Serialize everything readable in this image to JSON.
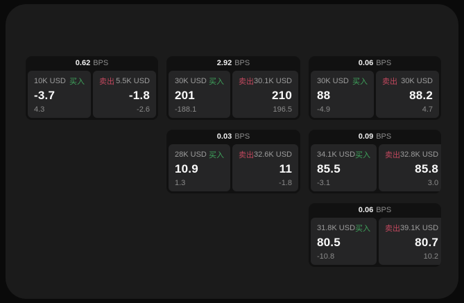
{
  "panel": {
    "bps_suffix": "BPS",
    "buy_label": "买入",
    "sell_label": "卖出",
    "colors": {
      "buy_green": "#3fa35c",
      "sell_red": "#c1485e",
      "panel_bg": "#1b1b1b",
      "card_bg": "#111111",
      "cell_bg": "#252526"
    },
    "cards": [
      {
        "bps": "0.62",
        "row": 1,
        "col": 1,
        "buy": {
          "amount": "10K USD",
          "price": "-3.7",
          "delta": "4.3"
        },
        "sell": {
          "amount": "5.5K USD",
          "price": "-1.8",
          "delta": "-2.6"
        }
      },
      {
        "bps": "2.92",
        "row": 1,
        "col": 2,
        "buy": {
          "amount": "30K USD",
          "price": "201",
          "delta": "-188.1"
        },
        "sell": {
          "amount": "30.1K USD",
          "price": "210",
          "delta": "196.5"
        }
      },
      {
        "bps": "0.06",
        "row": 1,
        "col": 3,
        "buy": {
          "amount": "30K USD",
          "price": "88",
          "delta": "-4.9"
        },
        "sell": {
          "amount": "30K USD",
          "price": "88.2",
          "delta": "4.7"
        }
      },
      {
        "bps": "0.03",
        "row": 2,
        "col": 2,
        "buy": {
          "amount": "28K USD",
          "price": "10.9",
          "delta": "1.3"
        },
        "sell": {
          "amount": "32.6K USD",
          "price": "11",
          "delta": "-1.8"
        }
      },
      {
        "bps": "0.09",
        "row": 2,
        "col": 3,
        "buy": {
          "amount": "34.1K USD",
          "price": "85.5",
          "delta": "-3.1"
        },
        "sell": {
          "amount": "32.8K USD",
          "price": "85.8",
          "delta": "3.0"
        }
      },
      {
        "bps": "0.06",
        "row": 3,
        "col": 3,
        "buy": {
          "amount": "31.8K USD",
          "price": "80.5",
          "delta": "-10.8"
        },
        "sell": {
          "amount": "39.1K USD",
          "price": "80.7",
          "delta": "10.2"
        }
      }
    ]
  }
}
